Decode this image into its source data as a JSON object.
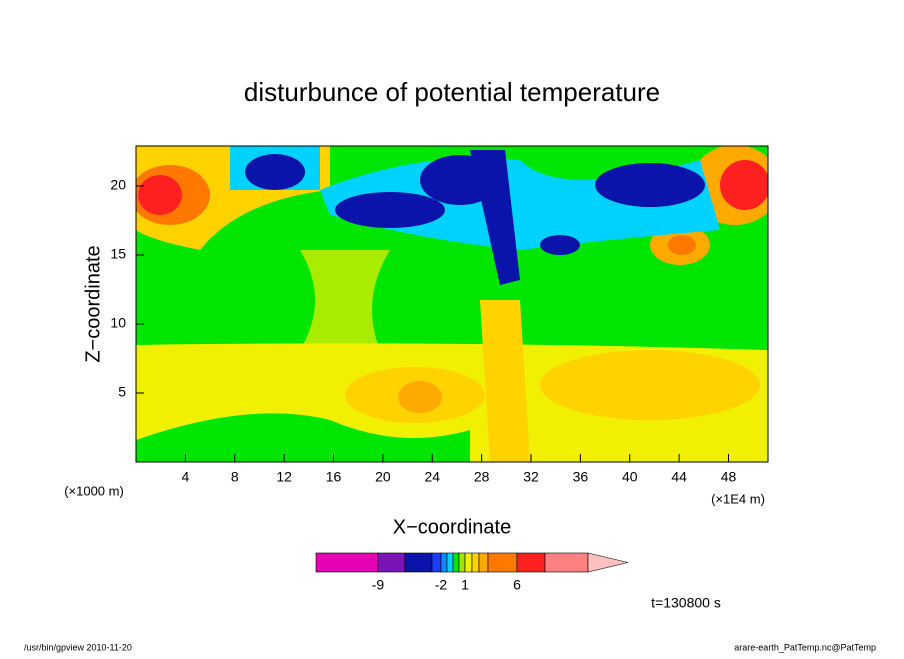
{
  "chart_data": {
    "type": "contour",
    "title": "disturbunce of potential temperature",
    "xlabel": "X−coordinate",
    "ylabel": "Z−coordinate",
    "x_unit": "(×1000 m)",
    "x_unit_right": "(×1E4 m)",
    "xlim": [
      0,
      51.2
    ],
    "xticks": [
      4,
      8,
      12,
      16,
      20,
      24,
      28,
      32,
      36,
      40,
      44,
      48
    ],
    "ylim": [
      0,
      22.9
    ],
    "yticks": [
      5,
      10,
      15,
      20
    ],
    "colorbar": {
      "colors": [
        "#e600b4",
        "#7a14b4",
        "#0a14aa",
        "#1e3cff",
        "#0a8cff",
        "#00d2ff",
        "#00e600",
        "#a0e600",
        "#f0f000",
        "#ffd200",
        "#ffaa00",
        "#ff7800",
        "#ff2020",
        "#ff8080",
        "#ffc0c0"
      ],
      "ticks": [
        -9,
        -2,
        1,
        6
      ]
    },
    "time_label": "t=130800 s",
    "footer_left": "/usr/bin/gpview  2010-11-20",
    "footer_right": "arare-earth_PatTemp.nc@PatTemp"
  }
}
